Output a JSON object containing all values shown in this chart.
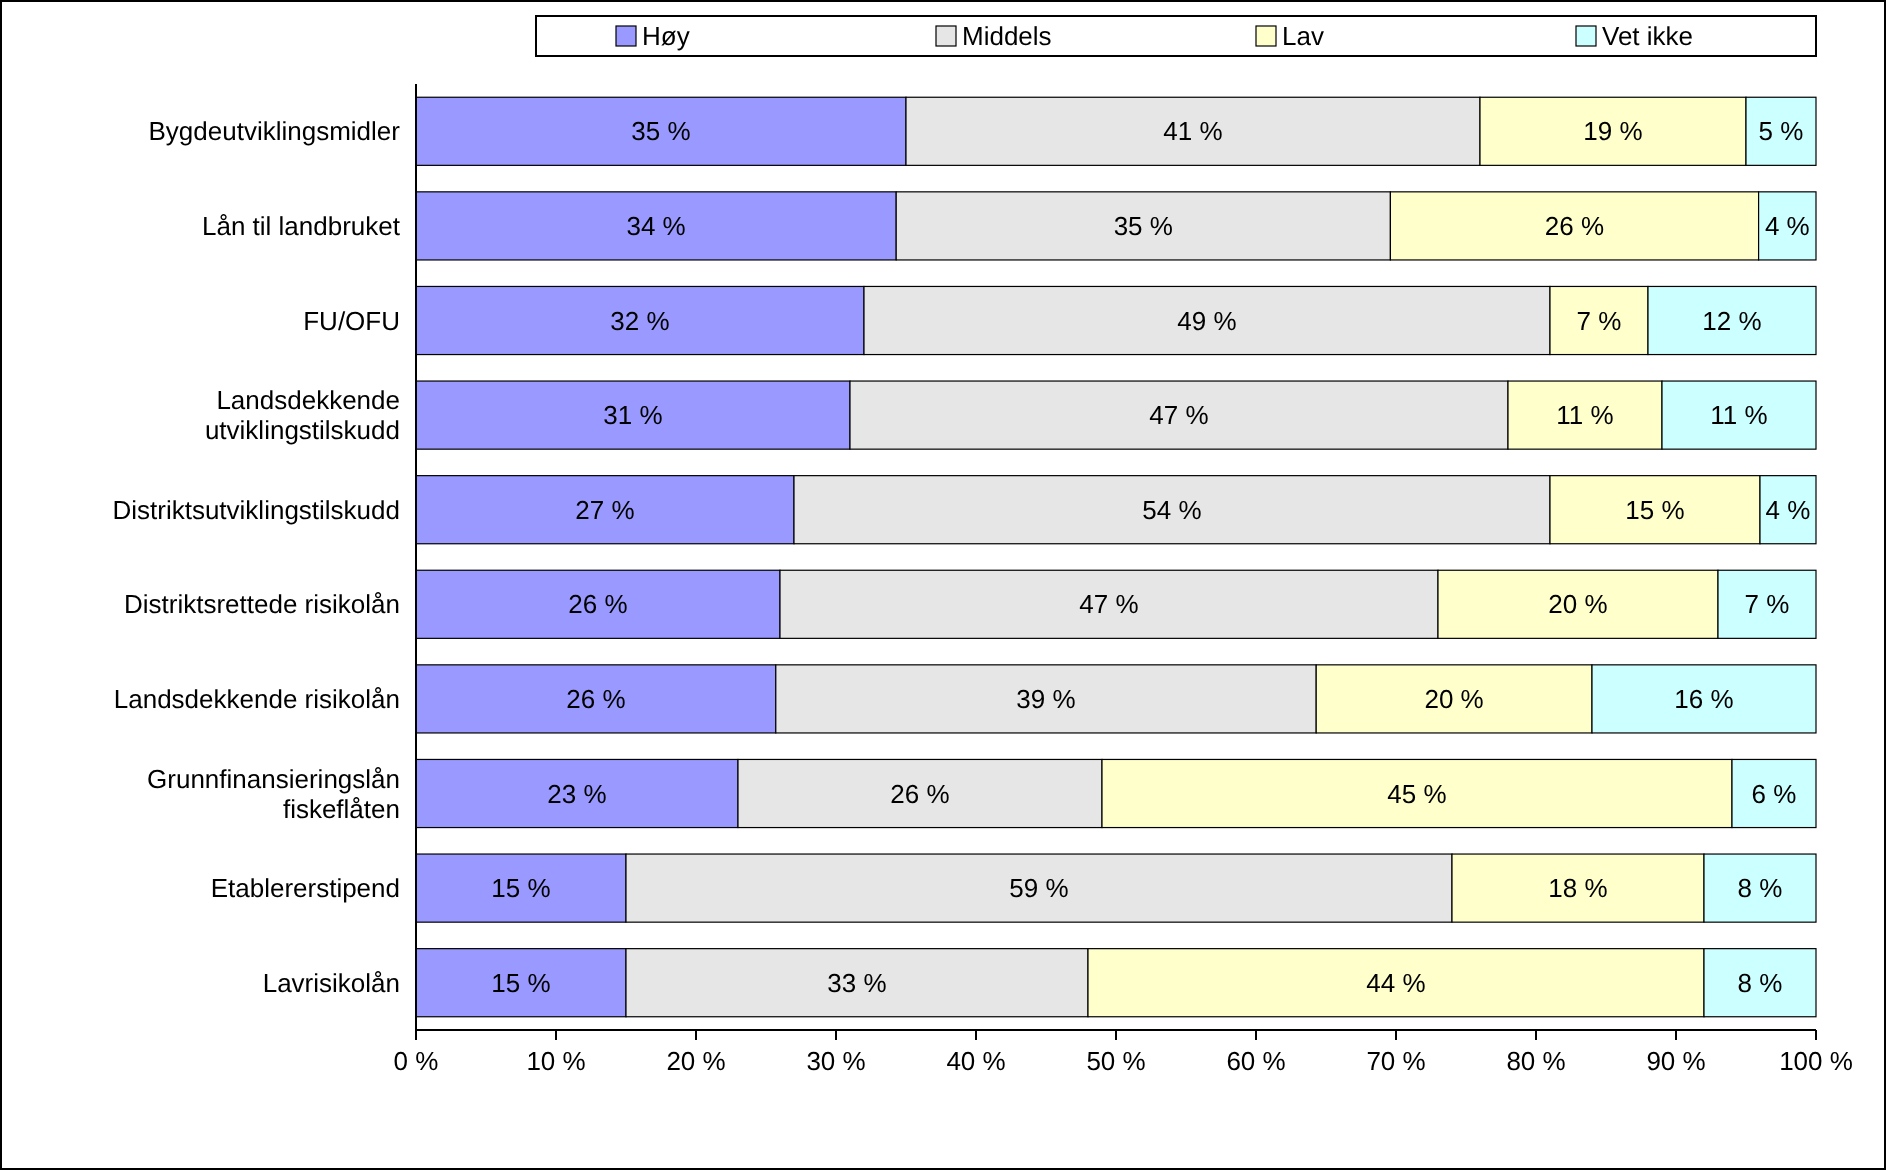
{
  "chart_data": {
    "type": "bar",
    "orientation": "horizontal",
    "stacked": true,
    "categories": [
      "Bygdeutviklingsmidler",
      "Lån til landbruket",
      "FU/OFU",
      "Landsdekkende utviklingstilskudd",
      "Distriktsutviklingstilskudd",
      "Distriktsrettede risikolån",
      "Landsdekkende risikolån",
      "Grunnfinansieringslån fiskeflåten",
      "Etablererstipend",
      "Lavrisikolån"
    ],
    "series": [
      {
        "name": "Høy",
        "color": "#9999ff",
        "values": [
          35,
          34.3,
          32,
          31,
          27,
          26,
          25.7,
          23,
          15,
          15
        ],
        "value_labels": [
          "35 %",
          "34 %",
          "32 %",
          "31 %",
          "27 %",
          "26 %",
          "26 %",
          "23 %",
          "15 %",
          "15 %"
        ]
      },
      {
        "name": "Middels",
        "color": "#e6e6e6",
        "values": [
          41,
          35.3,
          49,
          47,
          54,
          47,
          38.6,
          26,
          59,
          33
        ],
        "value_labels": [
          "41 %",
          "35 %",
          "49 %",
          "47 %",
          "54 %",
          "47 %",
          "39 %",
          "26 %",
          "59 %",
          "33 %"
        ]
      },
      {
        "name": "Lav",
        "color": "#ffffcc",
        "values": [
          19,
          26.3,
          7,
          11,
          15,
          20,
          19.7,
          45,
          18,
          44
        ],
        "value_labels": [
          "19 %",
          "26 %",
          "7 %",
          "11 %",
          "15 %",
          "20 %",
          "20 %",
          "45 %",
          "18 %",
          "44 %"
        ]
      },
      {
        "name": "Vet ikke",
        "color": "#ccffff",
        "values": [
          5,
          4.1,
          12,
          11,
          4,
          7,
          16,
          6,
          8,
          8
        ],
        "value_labels": [
          "5 %",
          "4 %",
          "12 %",
          "11 %",
          "4 %",
          "7 %",
          "16 %",
          "6 %",
          "8 %",
          "8 %"
        ]
      }
    ],
    "xlim": [
      0,
      100
    ],
    "xticks": [
      {
        "value": 0,
        "label": "0 %"
      },
      {
        "value": 10,
        "label": "10 %"
      },
      {
        "value": 20,
        "label": "20 %"
      },
      {
        "value": 30,
        "label": "30 %"
      },
      {
        "value": 40,
        "label": "40 %"
      },
      {
        "value": 50,
        "label": "50 %"
      },
      {
        "value": 60,
        "label": "60 %"
      },
      {
        "value": 70,
        "label": "70 %"
      },
      {
        "value": 80,
        "label": "80 %"
      },
      {
        "value": 90,
        "label": "90 %"
      },
      {
        "value": 100,
        "label": "100 %"
      }
    ],
    "legend": "top"
  }
}
